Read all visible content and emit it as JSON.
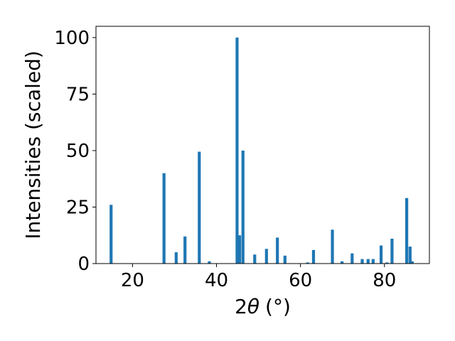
{
  "chart_data": {
    "type": "bar",
    "xlabel": "2θ (°)",
    "xlabel_parts": {
      "main": "2",
      "symbol": "θ",
      "unit": "(°)"
    },
    "ylabel": "Intensities (scaled)",
    "xlim": [
      11.3,
      90.7
    ],
    "ylim": [
      0,
      105
    ],
    "xticks": [
      20,
      40,
      60,
      80
    ],
    "yticks": [
      0,
      25,
      50,
      75,
      100
    ],
    "bar_color": "#1f77b4",
    "grid": false,
    "series": [
      {
        "x": [
          14.9,
          27.5,
          30.4,
          32.5,
          35.9,
          38.3,
          44.9,
          45.5,
          46.3,
          49.1,
          51.9,
          54.5,
          56.3,
          61.7,
          63.1,
          67.6,
          69.9,
          72.3,
          74.7,
          76.1,
          77.3,
          79.2,
          80.6,
          81.8,
          85.3,
          86.1,
          86.6
        ],
        "y": [
          26,
          40,
          5,
          12,
          49.5,
          1,
          100,
          12.5,
          50,
          4,
          6.5,
          11.5,
          3.5,
          0.5,
          6,
          15,
          1,
          4.5,
          2,
          2,
          2,
          8,
          0.5,
          11,
          29,
          7.5,
          1
        ]
      }
    ]
  }
}
